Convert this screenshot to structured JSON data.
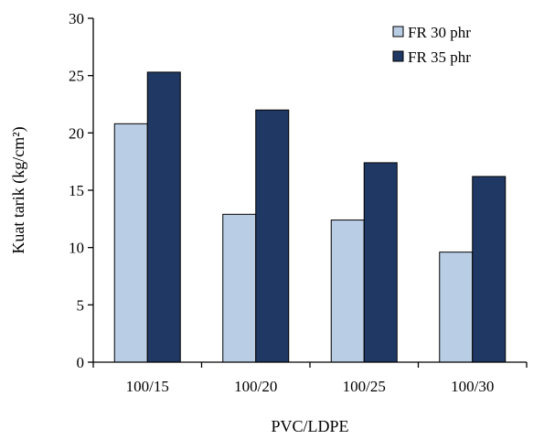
{
  "chart_data": {
    "type": "bar",
    "categories": [
      "100/15",
      "100/20",
      "100/25",
      "100/30"
    ],
    "series": [
      {
        "name": "FR 30 phr",
        "values": [
          20.8,
          12.9,
          12.4,
          9.6
        ],
        "color": "#b9cde5"
      },
      {
        "name": "FR 35 phr",
        "values": [
          25.3,
          22.0,
          17.4,
          16.2
        ],
        "color": "#1f3864"
      }
    ],
    "xlabel": "PVC/LDPE",
    "ylabel": "Kuat tarik (kg/cm²)",
    "ylim": [
      0,
      30
    ],
    "yticks": [
      "0",
      "5",
      "10",
      "15",
      "20",
      "25",
      "30"
    ],
    "grid": false,
    "legend_position": "top-right"
  }
}
